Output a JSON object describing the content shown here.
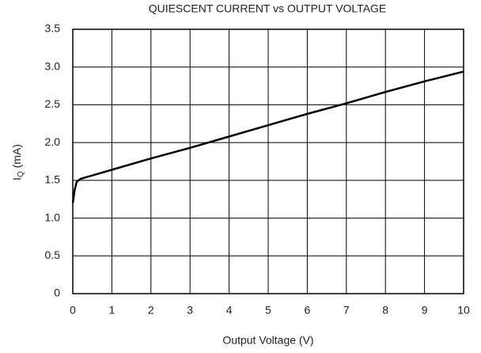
{
  "chart_data": {
    "type": "line",
    "title": "QUIESCENT CURRENT vs OUTPUT VOLTAGE",
    "x_label": "Output Voltage (V)",
    "y_label": {
      "main": "I",
      "sub": "Q",
      "unit": " (mA)"
    },
    "x": [
      0,
      0.05,
      0.1,
      0.2,
      1,
      2,
      3,
      4,
      5,
      6,
      7,
      8,
      9,
      10
    ],
    "series": [
      {
        "color": "#000000",
        "values": [
          1.2,
          1.38,
          1.48,
          1.52,
          1.64,
          1.79,
          1.93,
          2.08,
          2.23,
          2.38,
          2.52,
          2.67,
          2.81,
          2.94
        ]
      }
    ],
    "xlim": [
      0,
      10
    ],
    "xticks": [
      0,
      1,
      2,
      3,
      4,
      5,
      6,
      7,
      8,
      9,
      10
    ],
    "ylim": [
      0,
      3.5
    ],
    "yticks": [
      0,
      0.5,
      {
        "value": 1,
        "label": "1.0"
      },
      1.5,
      {
        "value": 2,
        "label": "2.0"
      },
      2.5,
      {
        "value": 3,
        "label": "3.0"
      },
      3.5
    ],
    "grid": true
  }
}
